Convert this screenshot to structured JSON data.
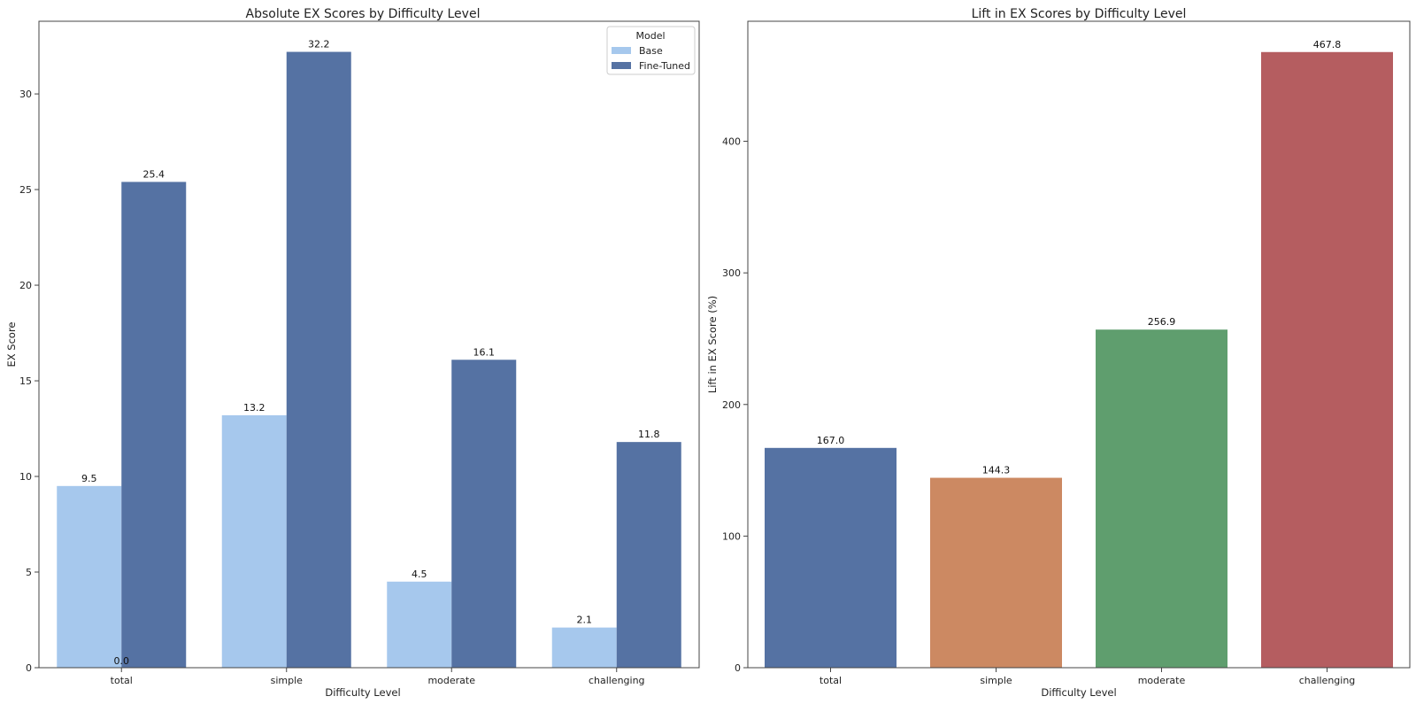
{
  "chart_data": [
    {
      "type": "bar",
      "title": "Absolute EX Scores by Difficulty Level",
      "xlabel": "Difficulty Level",
      "ylabel": "EX Score",
      "categories": [
        "total",
        "simple",
        "moderate",
        "challenging"
      ],
      "series": [
        {
          "name": "Base",
          "values": [
            9.5,
            13.2,
            4.5,
            2.1
          ],
          "color": "#a6c8ed"
        },
        {
          "name": "Fine-Tuned",
          "values": [
            25.4,
            32.2,
            16.1,
            11.8
          ],
          "color": "#5572a3"
        }
      ],
      "ylim": [
        0,
        33.8
      ],
      "yticks": [
        0,
        5,
        10,
        15,
        20,
        25,
        30
      ],
      "grid": false,
      "legend": {
        "title": "Model",
        "placement": "top-right"
      },
      "stray_labels": [
        {
          "category": "total",
          "text": "0.0"
        }
      ],
      "value_labels": {
        "Base": [
          "9.5",
          "13.2",
          "4.5",
          "2.1"
        ],
        "Fine-Tuned": [
          "25.4",
          "32.2",
          "16.1",
          "11.8"
        ]
      }
    },
    {
      "type": "bar",
      "title": "Lift in EX Scores by Difficulty Level",
      "xlabel": "Difficulty Level",
      "ylabel": "Lift in EX Score (%)",
      "categories": [
        "total",
        "simple",
        "moderate",
        "challenging"
      ],
      "values": [
        167.0,
        144.3,
        256.9,
        467.8
      ],
      "value_labels": [
        "167.0",
        "144.3",
        "256.9",
        "467.8"
      ],
      "colors": [
        "#5572a3",
        "#cc8962",
        "#5f9e6e",
        "#b55d60"
      ],
      "ylim": [
        0,
        491.2
      ],
      "yticks": [
        0,
        100,
        200,
        300,
        400
      ],
      "grid": false
    }
  ]
}
